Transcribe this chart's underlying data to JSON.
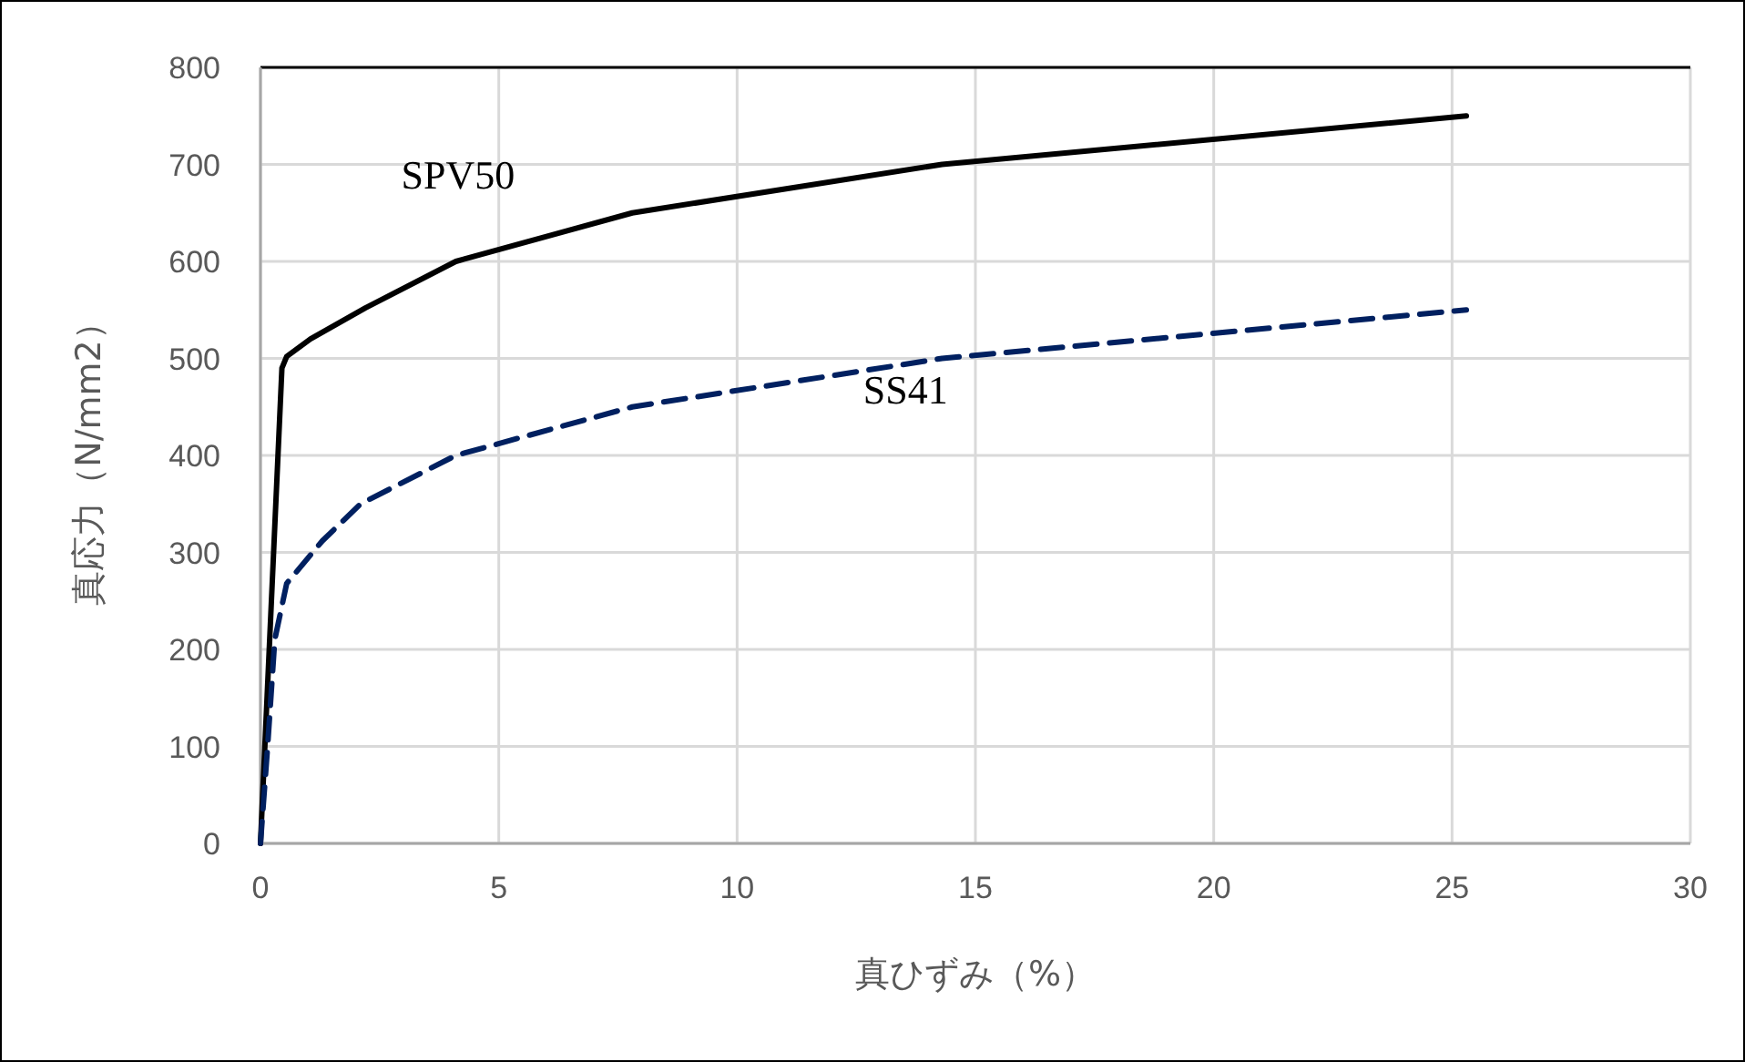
{
  "chart_data": {
    "type": "line",
    "xlabel": "真ひずみ（%）",
    "ylabel": "真応力（N/mm2）",
    "xlim": [
      0,
      30
    ],
    "xticks": [
      0,
      5,
      10,
      15,
      20,
      25,
      30
    ],
    "ylim": [
      0,
      800
    ],
    "yticks": [
      0,
      100,
      200,
      300,
      400,
      500,
      600,
      700,
      800
    ],
    "grid": true,
    "series": [
      {
        "name": "SPV50",
        "color": "#000000",
        "line_style": "solid",
        "x": [
          0,
          0.45,
          0.55,
          1.05,
          2.2,
          4.1,
          7.8,
          14.3,
          25.3
        ],
        "values": [
          0,
          490,
          502,
          520,
          552,
          600,
          650,
          700,
          750
        ]
      },
      {
        "name": "SS41",
        "color": "#002060",
        "line_style": "dashed",
        "x": [
          0,
          0.15,
          0.3,
          0.55,
          1.3,
          2.1,
          4.1,
          7.8,
          14.3,
          25.3
        ],
        "values": [
          0,
          100,
          210,
          268,
          312,
          350,
          400,
          450,
          500,
          550
        ]
      }
    ]
  }
}
